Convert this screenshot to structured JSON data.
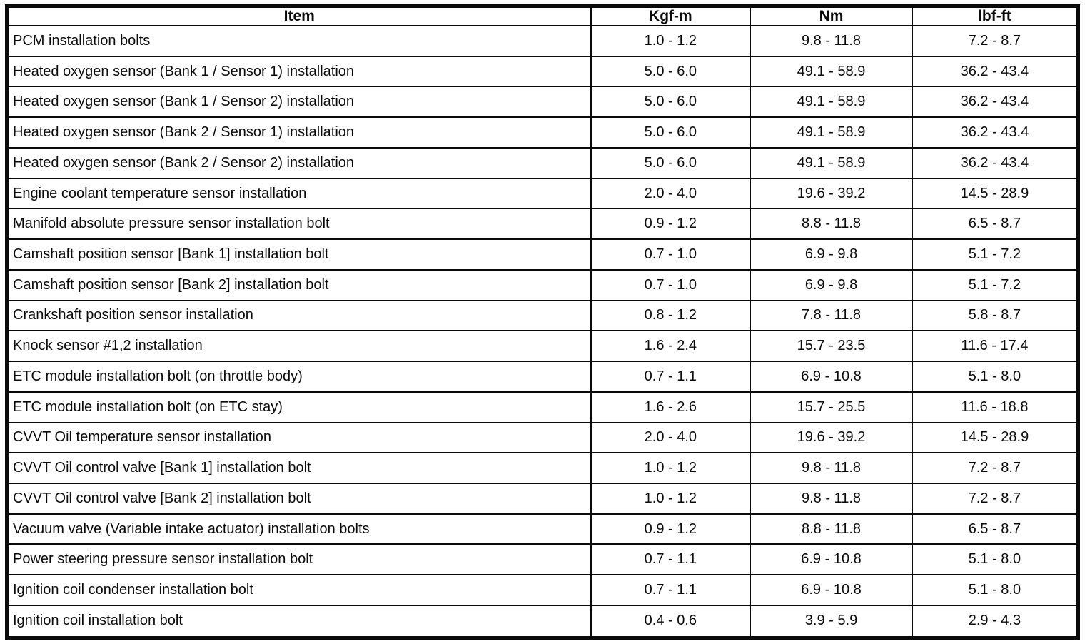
{
  "table": {
    "columns": [
      "Item",
      "Kgf-m",
      "Nm",
      "lbf-ft"
    ],
    "rows": [
      {
        "item": "PCM installation bolts",
        "kgf_m": "1.0 - 1.2",
        "nm": "9.8 - 11.8",
        "lbf_ft": "7.2 - 8.7"
      },
      {
        "item": "Heated oxygen sensor (Bank 1 / Sensor 1) installation",
        "kgf_m": "5.0 - 6.0",
        "nm": "49.1 - 58.9",
        "lbf_ft": "36.2 - 43.4"
      },
      {
        "item": "Heated oxygen sensor (Bank 1 / Sensor 2) installation",
        "kgf_m": "5.0 - 6.0",
        "nm": "49.1 - 58.9",
        "lbf_ft": "36.2 - 43.4"
      },
      {
        "item": "Heated oxygen sensor (Bank 2 / Sensor 1) installation",
        "kgf_m": "5.0 - 6.0",
        "nm": "49.1 - 58.9",
        "lbf_ft": "36.2 - 43.4"
      },
      {
        "item": "Heated oxygen sensor (Bank 2 / Sensor 2) installation",
        "kgf_m": "5.0 - 6.0",
        "nm": "49.1 - 58.9",
        "lbf_ft": "36.2 - 43.4"
      },
      {
        "item": "Engine coolant temperature sensor installation",
        "kgf_m": "2.0 - 4.0",
        "nm": "19.6 - 39.2",
        "lbf_ft": "14.5 - 28.9"
      },
      {
        "item": "Manifold absolute pressure sensor installation bolt",
        "kgf_m": "0.9 - 1.2",
        "nm": "8.8 - 11.8",
        "lbf_ft": "6.5 - 8.7"
      },
      {
        "item": "Camshaft position sensor [Bank 1] installation bolt",
        "kgf_m": "0.7 - 1.0",
        "nm": "6.9 - 9.8",
        "lbf_ft": "5.1 - 7.2"
      },
      {
        "item": "Camshaft position sensor [Bank 2] installation bolt",
        "kgf_m": "0.7 - 1.0",
        "nm": "6.9 - 9.8",
        "lbf_ft": "5.1 - 7.2"
      },
      {
        "item": "Crankshaft position sensor installation",
        "kgf_m": "0.8 - 1.2",
        "nm": "7.8 - 11.8",
        "lbf_ft": "5.8 - 8.7"
      },
      {
        "item": "Knock sensor #1,2 installation",
        "kgf_m": "1.6 - 2.4",
        "nm": "15.7 - 23.5",
        "lbf_ft": "11.6 - 17.4"
      },
      {
        "item": "ETC module installation bolt (on throttle body)",
        "kgf_m": "0.7 - 1.1",
        "nm": "6.9 - 10.8",
        "lbf_ft": "5.1 - 8.0"
      },
      {
        "item": "ETC module installation bolt (on ETC stay)",
        "kgf_m": "1.6 - 2.6",
        "nm": "15.7 - 25.5",
        "lbf_ft": "11.6 - 18.8"
      },
      {
        "item": "CVVT Oil temperature sensor installation",
        "kgf_m": "2.0 - 4.0",
        "nm": "19.6 - 39.2",
        "lbf_ft": "14.5 - 28.9"
      },
      {
        "item": "CVVT Oil control valve [Bank 1] installation bolt",
        "kgf_m": "1.0 - 1.2",
        "nm": "9.8 - 11.8",
        "lbf_ft": "7.2 - 8.7"
      },
      {
        "item": "CVVT Oil control valve [Bank 2] installation bolt",
        "kgf_m": "1.0 - 1.2",
        "nm": "9.8 - 11.8",
        "lbf_ft": "7.2 - 8.7"
      },
      {
        "item": "Vacuum valve (Variable intake actuator) installation bolts",
        "kgf_m": "0.9 - 1.2",
        "nm": "8.8 - 11.8",
        "lbf_ft": "6.5 - 8.7"
      },
      {
        "item": "Power steering pressure sensor installation bolt",
        "kgf_m": "0.7 - 1.1",
        "nm": "6.9 - 10.8",
        "lbf_ft": "5.1 - 8.0"
      },
      {
        "item": "Ignition coil condenser installation bolt",
        "kgf_m": "0.7 - 1.1",
        "nm": "6.9 - 10.8",
        "lbf_ft": "5.1 - 8.0"
      },
      {
        "item": "Ignition coil installation bolt",
        "kgf_m": "0.4 - 0.6",
        "nm": "3.9 - 5.9",
        "lbf_ft": "2.9 - 4.3"
      }
    ]
  }
}
